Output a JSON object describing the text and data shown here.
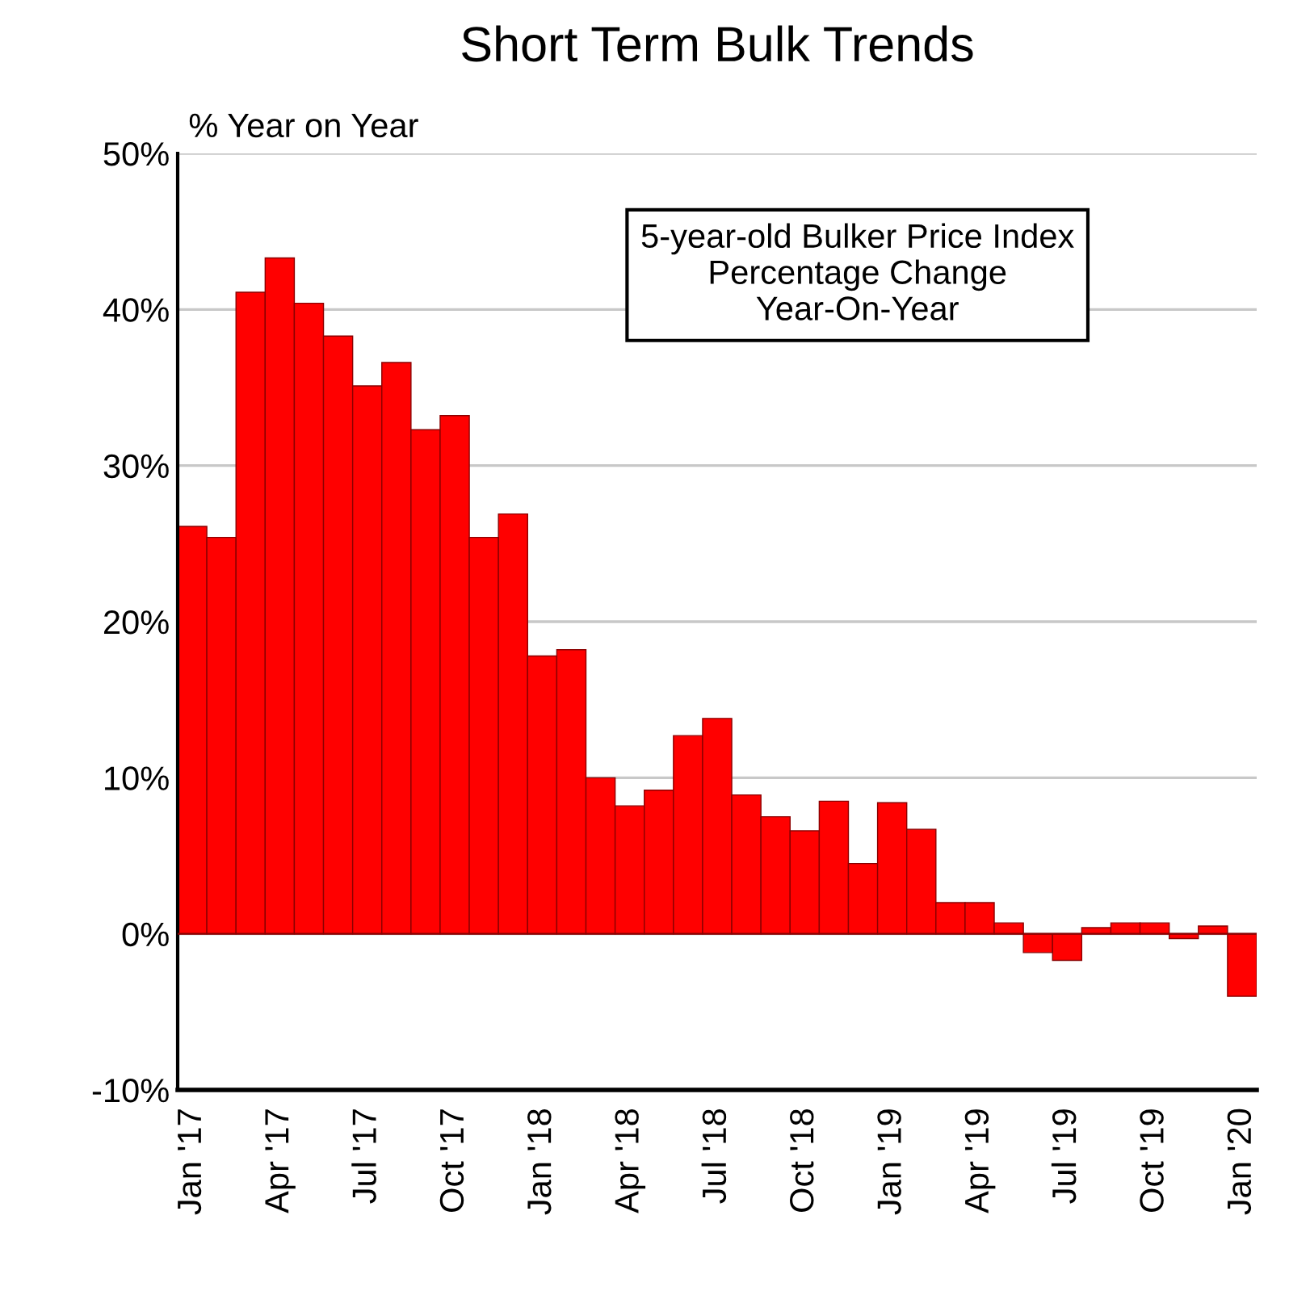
{
  "chart_data": {
    "type": "bar",
    "title": "Short Term Bulk Trends",
    "ylabel": "% Year on Year",
    "annotations": [
      "5-year-old Bulker Price Index\nPercentage Change\nYear-On-Year"
    ],
    "categories": [
      "Jan '17",
      null,
      null,
      "Apr '17",
      null,
      null,
      "Jul '17",
      null,
      null,
      "Oct '17",
      null,
      null,
      "Jan '18",
      null,
      null,
      "Apr '18",
      null,
      null,
      "Jul '18",
      null,
      null,
      "Oct '18",
      null,
      null,
      "Jan '19",
      null,
      null,
      "Apr '19",
      null,
      null,
      "Jul '19",
      null,
      null,
      "Oct '19",
      null,
      null,
      "Jan '20"
    ],
    "values": [
      26.1,
      25.4,
      41.1,
      43.3,
      40.4,
      38.3,
      35.1,
      36.6,
      32.3,
      33.2,
      25.4,
      26.9,
      17.8,
      18.2,
      10.0,
      8.2,
      9.2,
      12.7,
      13.8,
      8.9,
      7.5,
      6.6,
      8.5,
      4.5,
      8.4,
      6.7,
      2.0,
      2.0,
      0.7,
      -1.2,
      -1.7,
      0.4,
      0.7,
      0.7,
      -0.3,
      0.5,
      -4.0
    ],
    "color": "#ff0000",
    "ylim": [
      -10,
      50
    ],
    "yticks": [
      {
        "value": -10,
        "label": "-10%"
      },
      {
        "value": 0,
        "label": "0%"
      },
      {
        "value": 10,
        "label": "10%"
      },
      {
        "value": 20,
        "label": "20%"
      },
      {
        "value": 30,
        "label": "30%"
      },
      {
        "value": 40,
        "label": "40%"
      },
      {
        "value": 50,
        "label": "50%"
      }
    ],
    "grid": "y",
    "ref_lines": [
      {
        "axis": "y",
        "value": 0,
        "color": "#8b0000"
      }
    ]
  }
}
